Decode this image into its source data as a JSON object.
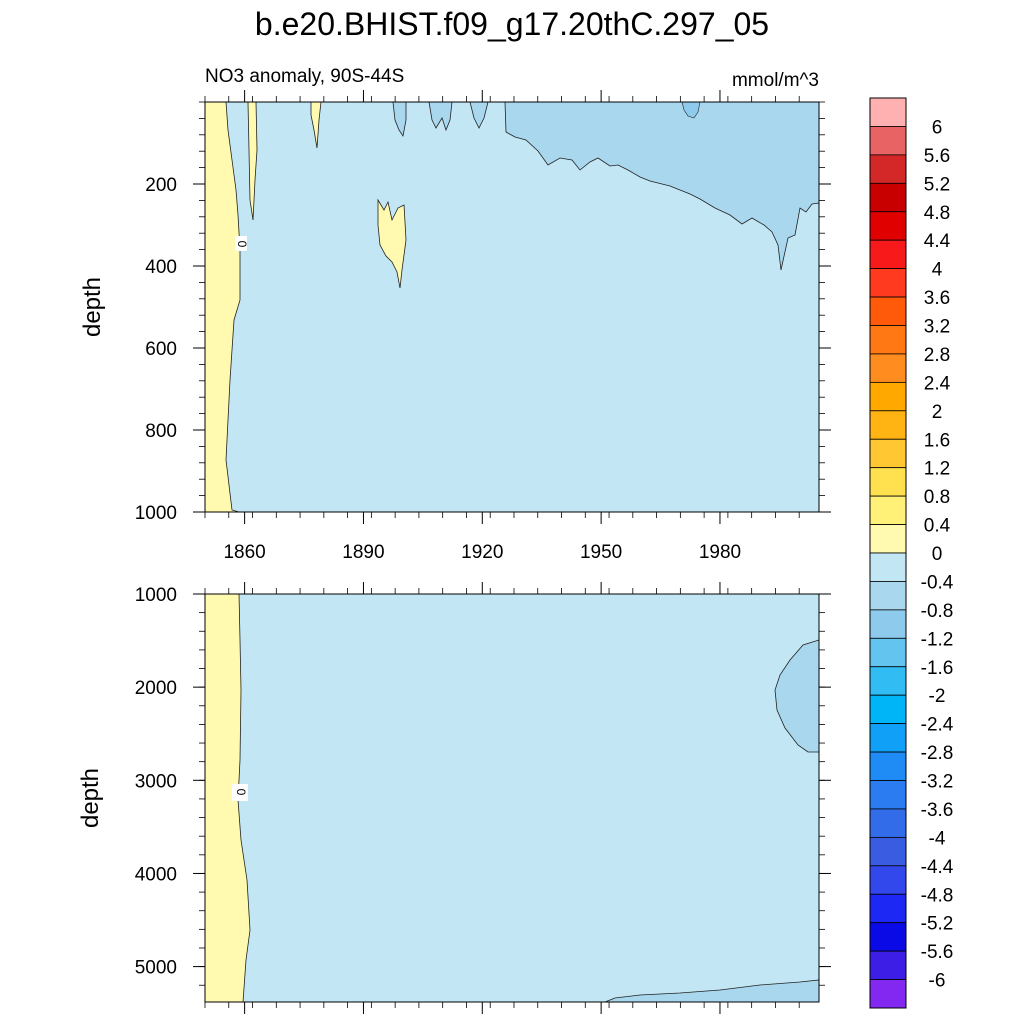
{
  "title": "b.e20.BHIST.f09_g17.20thC.297_05",
  "panel_left_label": "NO3 anomaly, 90S-44S",
  "units": "mmol/m^3",
  "colors": {
    "positive_fill": "#fffab0",
    "background_fill": "#c2e6f3",
    "negative_fill": "#a8d7ee",
    "contour_line": "#222222"
  },
  "chart_data": [
    {
      "type": "contour",
      "panel": "top",
      "title": "NO3 anomaly, 90S-44S",
      "units": "mmol/m^3",
      "ylabel": "depth",
      "y_reversed": true,
      "xlim": [
        1850,
        2005
      ],
      "ylim": [
        0,
        1000
      ],
      "x_ticks": [
        1860,
        1890,
        1920,
        1950,
        1980
      ],
      "y_ticks": [
        200,
        400,
        600,
        800,
        1000
      ],
      "contour_labels": [
        "0"
      ],
      "regions": [
        {
          "sign": "positive",
          "near": "1850-1860, 0-1000 m"
        },
        {
          "sign": "positive",
          "near": "~1877, 0-120 m"
        },
        {
          "sign": "positive",
          "near": "~1895-1900, 240-460 m"
        },
        {
          "sign": "negative",
          "near": "1925-2005, 0-430 m"
        }
      ]
    },
    {
      "type": "contour",
      "panel": "bottom",
      "ylabel": "depth",
      "y_reversed": true,
      "xlim": [
        1850,
        2005
      ],
      "ylim": [
        1000,
        5380
      ],
      "y_ticks": [
        1000,
        2000,
        3000,
        4000,
        5000
      ],
      "contour_labels": [
        "0"
      ],
      "regions": [
        {
          "sign": "positive",
          "near": "1850-1860, 1000-5380 m"
        },
        {
          "sign": "negative",
          "near": "~1990-2005, 1500-2700 m"
        },
        {
          "sign": "negative",
          "near": "1950-2005, 5100-5380 m"
        }
      ]
    }
  ],
  "colorbar": {
    "levels": [
      "6",
      "5.6",
      "5.2",
      "4.8",
      "4.4",
      "4",
      "3.6",
      "3.2",
      "2.8",
      "2.4",
      "2",
      "1.6",
      "1.2",
      "0.8",
      "0.4",
      "0",
      "-0.4",
      "-0.8",
      "-1.2",
      "-1.6",
      "-2",
      "-2.4",
      "-2.8",
      "-3.2",
      "-3.6",
      "-4",
      "-4.4",
      "-4.8",
      "-5.2",
      "-5.6",
      "-6"
    ],
    "colors": [
      "#ffb0b0",
      "#e86464",
      "#d42828",
      "#c80000",
      "#e00000",
      "#f81a1a",
      "#ff3a1e",
      "#ff5a0a",
      "#ff7814",
      "#ff8c1e",
      "#ffa800",
      "#ffb414",
      "#ffc832",
      "#ffe150",
      "#fff078",
      "#fffab0",
      "#c2e6f3",
      "#a8d7ee",
      "#8ecaeb",
      "#64c4f0",
      "#32bcf4",
      "#00b4f8",
      "#10a0f8",
      "#1e8cf4",
      "#2a7cf0",
      "#326ce8",
      "#3a5ce0",
      "#3248ec",
      "#1e28f4",
      "#0a0ae6",
      "#3c1ee6",
      "#8228f0"
    ]
  }
}
